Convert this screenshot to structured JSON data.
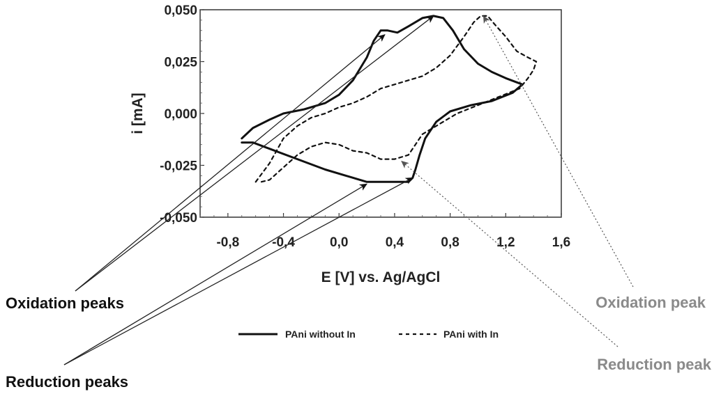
{
  "chart_data": {
    "type": "line",
    "xlabel": "E [V] vs. Ag/AgCl",
    "ylabel": "i [mA]",
    "xlim": [
      -1.0,
      1.6
    ],
    "ylim": [
      -0.05,
      0.05
    ],
    "x_ticks": [
      -0.8,
      -0.4,
      0.0,
      0.4,
      0.8,
      1.2,
      1.6
    ],
    "x_tick_labels": [
      "-0,8",
      "-0,4",
      "0,0",
      "0,4",
      "0,8",
      "1,2",
      "1,6"
    ],
    "y_ticks": [
      0.05,
      0.025,
      0.0,
      -0.025,
      -0.05
    ],
    "y_tick_labels": [
      "0,050",
      "0,025",
      "0,000",
      "-0,025",
      "-0,050"
    ],
    "legend_position": "bottom-center",
    "series": [
      {
        "name": "PAni without In",
        "style": "solid",
        "color": "#111111",
        "points": [
          [
            -0.7,
            -0.012
          ],
          [
            -0.62,
            -0.007
          ],
          [
            -0.5,
            -0.003
          ],
          [
            -0.4,
            0.0
          ],
          [
            -0.25,
            0.002
          ],
          [
            -0.1,
            0.005
          ],
          [
            0.0,
            0.009
          ],
          [
            0.1,
            0.016
          ],
          [
            0.2,
            0.027
          ],
          [
            0.25,
            0.035
          ],
          [
            0.3,
            0.04
          ],
          [
            0.35,
            0.04
          ],
          [
            0.42,
            0.039
          ],
          [
            0.5,
            0.042
          ],
          [
            0.6,
            0.046
          ],
          [
            0.68,
            0.047
          ],
          [
            0.75,
            0.046
          ],
          [
            0.82,
            0.04
          ],
          [
            0.9,
            0.031
          ],
          [
            1.0,
            0.024
          ],
          [
            1.1,
            0.02
          ],
          [
            1.2,
            0.017
          ],
          [
            1.32,
            0.014
          ],
          [
            1.25,
            0.01
          ],
          [
            1.1,
            0.006
          ],
          [
            0.95,
            0.004
          ],
          [
            0.8,
            0.001
          ],
          [
            0.7,
            -0.004
          ],
          [
            0.62,
            -0.012
          ],
          [
            0.58,
            -0.02
          ],
          [
            0.55,
            -0.027
          ],
          [
            0.53,
            -0.031
          ],
          [
            0.5,
            -0.033
          ],
          [
            0.4,
            -0.033
          ],
          [
            0.3,
            -0.033
          ],
          [
            0.2,
            -0.033
          ],
          [
            0.05,
            -0.03
          ],
          [
            -0.1,
            -0.027
          ],
          [
            -0.3,
            -0.022
          ],
          [
            -0.5,
            -0.017
          ],
          [
            -0.62,
            -0.014
          ],
          [
            -0.7,
            -0.014
          ]
        ]
      },
      {
        "name": "PAni with In",
        "style": "dashed",
        "color": "#111111",
        "points": [
          [
            -0.6,
            -0.033
          ],
          [
            -0.5,
            -0.024
          ],
          [
            -0.4,
            -0.012
          ],
          [
            -0.3,
            -0.006
          ],
          [
            -0.2,
            -0.002
          ],
          [
            -0.1,
            0.0
          ],
          [
            0.0,
            0.003
          ],
          [
            0.1,
            0.005
          ],
          [
            0.2,
            0.008
          ],
          [
            0.3,
            0.012
          ],
          [
            0.4,
            0.014
          ],
          [
            0.5,
            0.016
          ],
          [
            0.6,
            0.018
          ],
          [
            0.7,
            0.022
          ],
          [
            0.8,
            0.028
          ],
          [
            0.9,
            0.037
          ],
          [
            0.97,
            0.044
          ],
          [
            1.02,
            0.047
          ],
          [
            1.07,
            0.047
          ],
          [
            1.12,
            0.043
          ],
          [
            1.2,
            0.037
          ],
          [
            1.28,
            0.03
          ],
          [
            1.36,
            0.027
          ],
          [
            1.42,
            0.025
          ],
          [
            1.4,
            0.021
          ],
          [
            1.36,
            0.017
          ],
          [
            1.3,
            0.012
          ],
          [
            1.15,
            0.008
          ],
          [
            1.0,
            0.004
          ],
          [
            0.85,
            0.0
          ],
          [
            0.7,
            -0.006
          ],
          [
            0.6,
            -0.01
          ],
          [
            0.5,
            -0.02
          ],
          [
            0.4,
            -0.022
          ],
          [
            0.3,
            -0.022
          ],
          [
            0.2,
            -0.019
          ],
          [
            0.1,
            -0.018
          ],
          [
            0.0,
            -0.015
          ],
          [
            -0.1,
            -0.014
          ],
          [
            -0.2,
            -0.016
          ],
          [
            -0.3,
            -0.02
          ],
          [
            -0.4,
            -0.026
          ],
          [
            -0.5,
            -0.032
          ],
          [
            -0.56,
            -0.033
          ]
        ]
      }
    ],
    "annotations": [
      {
        "text": "Oxidation peaks",
        "style": "solid",
        "color": "#111111",
        "targets": [
          [
            0.33,
            0.038
          ],
          [
            0.68,
            0.047
          ]
        ]
      },
      {
        "text": "Reduction peaks",
        "style": "solid",
        "color": "#111111",
        "targets": [
          [
            0.2,
            -0.034
          ],
          [
            0.53,
            -0.031
          ]
        ]
      },
      {
        "text": "Oxidation peak",
        "style": "dotted",
        "color": "#8a8a8a",
        "targets": [
          [
            1.04,
            0.047
          ]
        ]
      },
      {
        "text": "Reduction peak",
        "style": "dotted",
        "color": "#8a8a8a",
        "targets": [
          [
            0.45,
            -0.023
          ]
        ]
      }
    ]
  }
}
